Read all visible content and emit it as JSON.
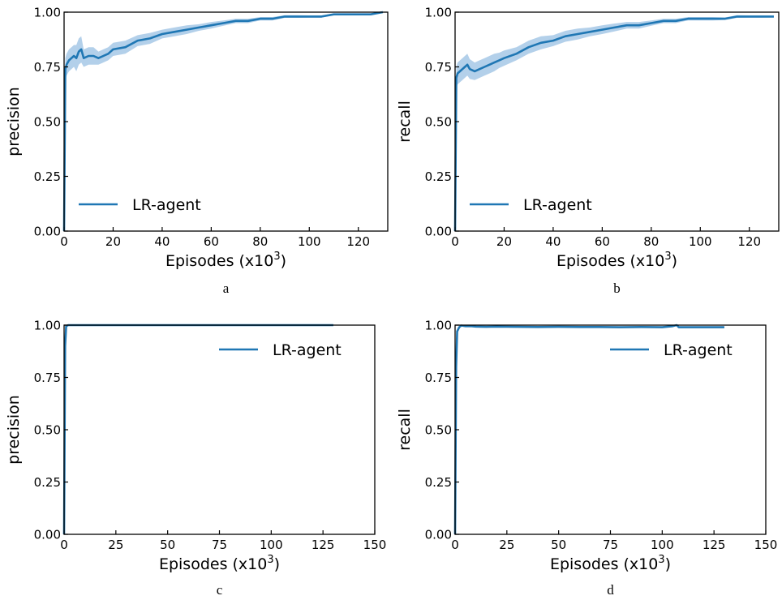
{
  "chart_data": [
    {
      "type": "line",
      "panel": "a",
      "caption": "a",
      "xlabel": "Episodes (x10",
      "xlabel_sup": "3",
      "xlabel_close": ")",
      "ylabel": "precision",
      "xlim": [
        0,
        132
      ],
      "ylim": [
        0,
        1.0
      ],
      "x_ticks": [
        0,
        20,
        40,
        60,
        80,
        100,
        120
      ],
      "y_ticks": [
        "0.00",
        "0.25",
        "0.50",
        "0.75",
        "1.00"
      ],
      "legend": "bottom-left",
      "band": true,
      "series": [
        {
          "name": "LR-agent",
          "x": [
            0,
            0.5,
            1,
            2,
            3,
            4,
            5,
            6,
            7,
            8,
            10,
            12,
            14,
            16,
            18,
            20,
            25,
            30,
            35,
            40,
            45,
            50,
            55,
            60,
            65,
            70,
            75,
            80,
            85,
            90,
            95,
            100,
            105,
            110,
            115,
            120,
            125,
            130
          ],
          "y": [
            0.0,
            0.74,
            0.76,
            0.78,
            0.79,
            0.8,
            0.79,
            0.82,
            0.83,
            0.79,
            0.8,
            0.8,
            0.79,
            0.8,
            0.81,
            0.83,
            0.84,
            0.87,
            0.88,
            0.9,
            0.91,
            0.92,
            0.93,
            0.94,
            0.95,
            0.96,
            0.96,
            0.97,
            0.97,
            0.98,
            0.98,
            0.98,
            0.98,
            0.99,
            0.99,
            0.99,
            0.99,
            1.0
          ],
          "band_width": [
            0.0,
            0.05,
            0.05,
            0.05,
            0.05,
            0.05,
            0.06,
            0.06,
            0.06,
            0.04,
            0.04,
            0.04,
            0.03,
            0.03,
            0.03,
            0.03,
            0.03,
            0.025,
            0.025,
            0.02,
            0.02,
            0.02,
            0.015,
            0.015,
            0.012,
            0.01,
            0.01,
            0.008,
            0.008,
            0.006,
            0.006,
            0.005,
            0.005,
            0.004,
            0.004,
            0.003,
            0.003,
            0.002
          ]
        }
      ],
      "color": "#1f77b4",
      "band_color": "#a6c8e6"
    },
    {
      "type": "line",
      "panel": "b",
      "caption": "b",
      "xlabel": "Episodes (x10",
      "xlabel_sup": "3",
      "xlabel_close": ")",
      "ylabel": "recall",
      "xlim": [
        0,
        132
      ],
      "ylim": [
        0,
        1.0
      ],
      "x_ticks": [
        0,
        20,
        40,
        60,
        80,
        100,
        120
      ],
      "y_ticks": [
        "0.00",
        "0.25",
        "0.50",
        "0.75",
        "1.00"
      ],
      "legend": "bottom-left",
      "band": true,
      "series": [
        {
          "name": "LR-agent",
          "x": [
            0,
            0.5,
            1,
            2,
            3,
            4,
            5,
            6,
            8,
            10,
            12,
            14,
            16,
            18,
            20,
            25,
            30,
            35,
            40,
            45,
            50,
            55,
            60,
            65,
            70,
            75,
            80,
            85,
            90,
            95,
            100,
            105,
            110,
            115,
            120,
            125,
            130
          ],
          "y": [
            0.0,
            0.7,
            0.72,
            0.73,
            0.74,
            0.75,
            0.76,
            0.74,
            0.73,
            0.74,
            0.75,
            0.76,
            0.77,
            0.78,
            0.79,
            0.81,
            0.84,
            0.86,
            0.87,
            0.89,
            0.9,
            0.91,
            0.92,
            0.93,
            0.94,
            0.94,
            0.95,
            0.96,
            0.96,
            0.97,
            0.97,
            0.97,
            0.97,
            0.98,
            0.98,
            0.98,
            0.98
          ],
          "band_width": [
            0.0,
            0.05,
            0.05,
            0.05,
            0.05,
            0.05,
            0.05,
            0.045,
            0.04,
            0.04,
            0.04,
            0.04,
            0.04,
            0.035,
            0.035,
            0.03,
            0.03,
            0.03,
            0.025,
            0.025,
            0.025,
            0.02,
            0.02,
            0.018,
            0.015,
            0.015,
            0.012,
            0.01,
            0.01,
            0.008,
            0.008,
            0.008,
            0.006,
            0.006,
            0.005,
            0.005,
            0.004
          ]
        }
      ],
      "color": "#1f77b4",
      "band_color": "#a6c8e6"
    },
    {
      "type": "line",
      "panel": "c",
      "caption": "c",
      "xlabel": "Episodes (x10",
      "xlabel_sup": "3",
      "xlabel_close": ")",
      "ylabel": "precision",
      "xlim": [
        0,
        150
      ],
      "ylim": [
        0,
        1.0
      ],
      "x_ticks": [
        0,
        25,
        50,
        75,
        100,
        125,
        150
      ],
      "y_ticks": [
        "0.00",
        "0.25",
        "0.50",
        "0.75",
        "1.00"
      ],
      "legend": "top-right",
      "band": false,
      "series": [
        {
          "name": "LR-agent",
          "x": [
            0,
            0.5,
            1,
            2,
            5,
            10,
            20,
            40,
            60,
            80,
            100,
            120,
            130
          ],
          "y": [
            0.0,
            0.9,
            0.995,
            1.0,
            1.0,
            1.0,
            1.0,
            1.0,
            1.0,
            1.0,
            1.0,
            1.0,
            1.0
          ]
        }
      ],
      "color": "#1f77b4"
    },
    {
      "type": "line",
      "panel": "d",
      "caption": "d",
      "xlabel": "Episodes (x10",
      "xlabel_sup": "3",
      "xlabel_close": ")",
      "ylabel": "recall",
      "xlim": [
        0,
        150
      ],
      "ylim": [
        0,
        1.0
      ],
      "x_ticks": [
        0,
        25,
        50,
        75,
        100,
        125,
        150
      ],
      "y_ticks": [
        "0.00",
        "0.25",
        "0.50",
        "0.75",
        "1.00"
      ],
      "legend": "top-right",
      "band": false,
      "series": [
        {
          "name": "LR-agent",
          "x": [
            0,
            0.5,
            1,
            2,
            3,
            5,
            8,
            10,
            15,
            20,
            30,
            40,
            50,
            60,
            70,
            80,
            90,
            100,
            105,
            107,
            108,
            110,
            120,
            130
          ],
          "y": [
            0.0,
            0.8,
            0.97,
            0.99,
            0.998,
            0.995,
            0.995,
            0.993,
            0.992,
            0.993,
            0.992,
            0.991,
            0.992,
            0.991,
            0.991,
            0.99,
            0.991,
            0.99,
            0.995,
            1.0,
            0.99,
            0.99,
            0.99,
            0.99
          ]
        }
      ],
      "color": "#1f77b4"
    }
  ]
}
